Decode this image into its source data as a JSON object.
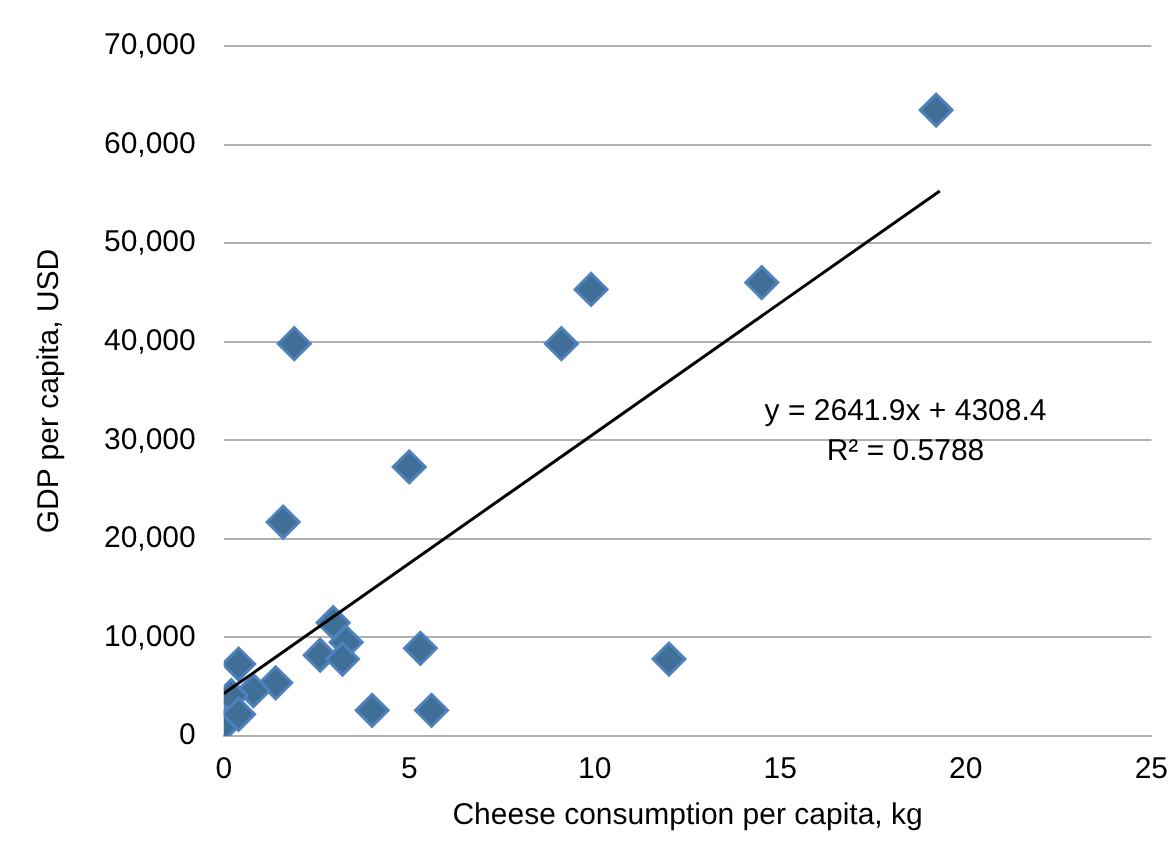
{
  "chart_data": {
    "type": "scatter",
    "xlabel": "Cheese consumption per capita, kg",
    "ylabel": "GDP per capita, USD",
    "xlim": [
      0,
      25
    ],
    "xticks": [
      0,
      5,
      10,
      15,
      20,
      25
    ],
    "ylim": [
      0,
      70000
    ],
    "yticks": [
      0,
      {
        "value": 10000,
        "label": "10,000"
      },
      {
        "value": 20000,
        "label": "20,000"
      },
      {
        "value": 30000,
        "label": "30,000"
      },
      {
        "value": 40000,
        "label": "40,000"
      },
      {
        "value": 50000,
        "label": "50,000"
      },
      {
        "value": 60000,
        "label": "60,000"
      },
      {
        "value": 70000,
        "label": "70,000"
      }
    ],
    "grid": "y",
    "legend": false,
    "marker": "diamond",
    "series": [
      {
        "type": "scatter",
        "color": "#3f6f96",
        "x": [
          19.2,
          14.5,
          9.9,
          9.1,
          1.9,
          5.0,
          1.6,
          2.95,
          3.3,
          2.6,
          3.2,
          5.3,
          0.4,
          1.4,
          0.8,
          0.2,
          4.0,
          5.6,
          0.05,
          0.4,
          12.0
        ],
        "values": [
          63500,
          46000,
          45300,
          39800,
          39800,
          27300,
          21700,
          11500,
          9500,
          8200,
          7800,
          8900,
          7300,
          5400,
          4600,
          4100,
          2600,
          2600,
          1300,
          2200,
          7800
        ]
      },
      {
        "type": "line",
        "color": "#000000",
        "marker": "none",
        "x": [
          0,
          19.3
        ],
        "values": [
          4300,
          55300
        ]
      }
    ],
    "annotations": [
      "y = 2641.9x + 4308.4",
      "R² = 0.5788"
    ]
  }
}
